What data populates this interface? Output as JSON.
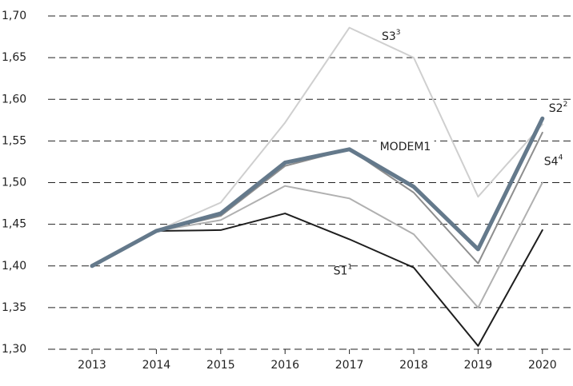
{
  "chart_data": {
    "type": "line",
    "categories": [
      "2013",
      "2014",
      "2015",
      "2016",
      "2017",
      "2018",
      "2019",
      "2020"
    ],
    "ylim": [
      1.3,
      1.7
    ],
    "yticks": [
      {
        "value": 1.3,
        "label": "1,30"
      },
      {
        "value": 1.35,
        "label": "1,35"
      },
      {
        "value": 1.4,
        "label": "1,40"
      },
      {
        "value": 1.45,
        "label": "1,45"
      },
      {
        "value": 1.5,
        "label": "1,50"
      },
      {
        "value": 1.55,
        "label": "1,55"
      },
      {
        "value": 1.6,
        "label": "1,60"
      },
      {
        "value": 1.65,
        "label": "1,65"
      },
      {
        "value": 1.7,
        "label": "1,70"
      }
    ],
    "grid": true,
    "series": [
      {
        "name": "S3",
        "note": "3",
        "color": "#cfcfcf",
        "width": 2,
        "values": [
          1.4,
          1.442,
          1.476,
          1.572,
          1.686,
          1.65,
          1.483,
          1.57
        ]
      },
      {
        "name": "S4",
        "note": "4",
        "color": "#b0b0b0",
        "width": 2,
        "values": [
          1.4,
          1.442,
          1.455,
          1.496,
          1.481,
          1.438,
          1.35,
          1.5
        ]
      },
      {
        "name": "S2",
        "note": "2",
        "color": "#8e8e8e",
        "width": 2,
        "values": [
          1.4,
          1.442,
          1.46,
          1.52,
          1.54,
          1.488,
          1.403,
          1.56
        ]
      },
      {
        "name": "S1",
        "note": "1",
        "color": "#1e1e1e",
        "width": 2,
        "values": [
          1.4,
          1.442,
          1.443,
          1.463,
          1.432,
          1.398,
          1.304,
          1.443
        ]
      },
      {
        "name": "MODEM1",
        "color": "#64798b",
        "width": 5,
        "values": [
          1.4,
          1.442,
          1.463,
          1.524,
          1.54,
          1.495,
          1.42,
          1.577
        ]
      }
    ]
  }
}
